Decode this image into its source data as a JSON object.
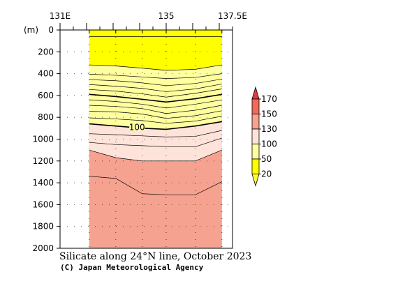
{
  "chart_data": {
    "type": "contour",
    "title": "Silicate along 24°N line, October 2023",
    "credit": "(C) Japan Meteorological Agency",
    "y_unit_label": "(m)",
    "x_ticks": [
      {
        "value": 131,
        "label": "131E"
      },
      {
        "value": 135,
        "label": "135"
      },
      {
        "value": 137.5,
        "label": "137.5E"
      }
    ],
    "xlim": [
      131,
      137.5
    ],
    "ylim": [
      0,
      2000
    ],
    "y_ticks": [
      0,
      200,
      400,
      600,
      800,
      1000,
      1200,
      1400,
      1600,
      1800,
      2000
    ],
    "y_tick_labels": [
      "0",
      "200",
      "400",
      "600",
      "800",
      "1000",
      "1200",
      "1400",
      "1600",
      "1800",
      "2000"
    ],
    "data_extent_lon": [
      132.1,
      137.1
    ],
    "station_lons": [
      132.1,
      133.1,
      134.1,
      135.0,
      136.1,
      137.1
    ],
    "levels": [
      20,
      50,
      100,
      130,
      150,
      170
    ],
    "colorbar_labels": [
      "20",
      "50",
      "100",
      "130",
      "150",
      "170"
    ],
    "colors": {
      "below_20": "#ffff33",
      "20_50": "#ffff00",
      "50_100": "#ffffa0",
      "100_130": "#fde3d9",
      "130_150": "#f5a290",
      "150_170": "#f16a5a",
      "above_170": "#e8393a"
    },
    "fill_bands": [
      {
        "level": "20_50",
        "depths": [
          60,
          60,
          60,
          60,
          60,
          60
        ]
      },
      {
        "level": "50_100",
        "depths": [
          320,
          330,
          350,
          370,
          360,
          320
        ]
      },
      {
        "level": "100_130",
        "depths": [
          860,
          880,
          900,
          910,
          880,
          840
        ]
      },
      {
        "level": "130_150",
        "depths": [
          1100,
          1170,
          1200,
          1200,
          1200,
          1100
        ]
      }
    ],
    "contours": [
      {
        "value": 20,
        "bold": false,
        "depths": [
          60,
          60,
          60,
          60,
          60,
          60
        ]
      },
      {
        "value": 50,
        "bold": false,
        "depths": [
          320,
          330,
          350,
          370,
          360,
          320
        ]
      },
      {
        "value": "",
        "bold": false,
        "depths": [
          405,
          415,
          430,
          445,
          435,
          400
        ]
      },
      {
        "value": "",
        "bold": false,
        "depths": [
          455,
          465,
          485,
          510,
          490,
          450
        ]
      },
      {
        "value": "",
        "bold": false,
        "depths": [
          500,
          515,
          535,
          565,
          540,
          495
        ]
      },
      {
        "value": "",
        "bold": false,
        "depths": [
          545,
          560,
          585,
          615,
          580,
          540
        ]
      },
      {
        "value": 80,
        "bold": true,
        "depths": [
          590,
          610,
          635,
          660,
          630,
          590
        ]
      },
      {
        "value": "",
        "bold": false,
        "depths": [
          640,
          655,
          680,
          715,
          680,
          640
        ]
      },
      {
        "value": "",
        "bold": false,
        "depths": [
          690,
          700,
          720,
          765,
          735,
          690
        ]
      },
      {
        "value": "",
        "bold": false,
        "depths": [
          745,
          750,
          770,
          810,
          785,
          740
        ]
      },
      {
        "value": "",
        "bold": false,
        "depths": [
          805,
          815,
          830,
          855,
          835,
          790
        ]
      },
      {
        "value": 100,
        "bold": true,
        "depths": [
          860,
          880,
          900,
          910,
          880,
          840
        ]
      },
      {
        "value": "",
        "bold": false,
        "depths": [
          950,
          960,
          970,
          980,
          975,
          920
        ]
      },
      {
        "value": "",
        "bold": false,
        "depths": [
          1030,
          1050,
          1060,
          1070,
          1070,
          990
        ]
      },
      {
        "value": 130,
        "bold": false,
        "depths": [
          1100,
          1170,
          1200,
          1200,
          1200,
          1100
        ]
      },
      {
        "value": "",
        "bold": false,
        "depths": [
          1340,
          1360,
          1500,
          1510,
          1510,
          1390
        ]
      }
    ],
    "inline_labels": [
      {
        "text": "100",
        "lon": 133.9,
        "depth": 890
      }
    ]
  }
}
